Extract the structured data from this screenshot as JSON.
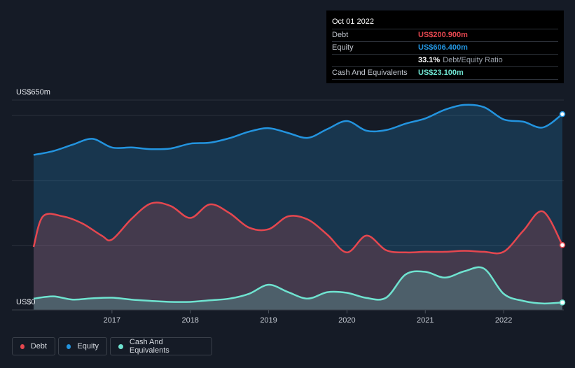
{
  "tooltip": {
    "date": "Oct 01 2022",
    "debt_label": "Debt",
    "debt_value": "US$200.900m",
    "equity_label": "Equity",
    "equity_value": "US$606.400m",
    "ratio_value": "33.1%",
    "ratio_label": "Debt/Equity Ratio",
    "cash_label": "Cash And Equivalents",
    "cash_value": "US$23.100m"
  },
  "legend": {
    "debt": "Debt",
    "equity": "Equity",
    "cash": "Cash And Equivalents"
  },
  "colors": {
    "debt": "#e5474f",
    "equity": "#2394df",
    "cash": "#6fe3d0",
    "background": "#151b26"
  },
  "chart_data": {
    "type": "area",
    "y_top_label": "US$650m",
    "y_bottom_label": "US$0",
    "ylim": [
      0,
      650
    ],
    "xlim": [
      2016.0,
      2022.75
    ],
    "x_tick_labels": [
      "2017",
      "2018",
      "2019",
      "2020",
      "2021",
      "2022"
    ],
    "x_ticks": [
      2017,
      2018,
      2019,
      2020,
      2021,
      2022
    ],
    "grid": true,
    "legend_position": "bottom-left",
    "series": [
      {
        "name": "Equity",
        "x": [
          2016.0,
          2016.25,
          2016.5,
          2016.75,
          2017.0,
          2017.25,
          2017.5,
          2017.75,
          2018.0,
          2018.25,
          2018.5,
          2018.75,
          2019.0,
          2019.25,
          2019.5,
          2019.75,
          2020.0,
          2020.25,
          2020.5,
          2020.75,
          2021.0,
          2021.25,
          2021.5,
          2021.75,
          2022.0,
          2022.25,
          2022.5,
          2022.75
        ],
        "values": [
          480,
          492,
          512,
          530,
          503,
          503,
          498,
          500,
          515,
          518,
          532,
          552,
          563,
          548,
          533,
          560,
          585,
          555,
          557,
          577,
          593,
          620,
          635,
          628,
          590,
          583,
          565,
          606.4
        ]
      },
      {
        "name": "Debt",
        "x": [
          2016.0,
          2016.12,
          2016.37,
          2016.62,
          2016.87,
          2017.0,
          2017.25,
          2017.5,
          2017.75,
          2018.0,
          2018.25,
          2018.5,
          2018.75,
          2019.0,
          2019.25,
          2019.5,
          2019.75,
          2020.0,
          2020.25,
          2020.5,
          2020.75,
          2021.0,
          2021.25,
          2021.5,
          2021.75,
          2022.0,
          2022.25,
          2022.5,
          2022.75
        ],
        "values": [
          195,
          290,
          290,
          268,
          230,
          218,
          282,
          330,
          322,
          285,
          327,
          300,
          255,
          250,
          290,
          280,
          233,
          178,
          230,
          185,
          178,
          180,
          180,
          183,
          180,
          180,
          245,
          305,
          200.9
        ]
      },
      {
        "name": "Cash And Equivalents",
        "x": [
          2016.0,
          2016.25,
          2016.5,
          2016.75,
          2017.0,
          2017.25,
          2017.5,
          2017.75,
          2018.0,
          2018.25,
          2018.5,
          2018.75,
          2019.0,
          2019.25,
          2019.5,
          2019.75,
          2020.0,
          2020.25,
          2020.5,
          2020.75,
          2021.0,
          2021.25,
          2021.5,
          2021.75,
          2022.0,
          2022.25,
          2022.5,
          2022.75
        ],
        "values": [
          35,
          42,
          32,
          36,
          38,
          32,
          28,
          25,
          25,
          30,
          35,
          50,
          78,
          55,
          35,
          55,
          53,
          37,
          38,
          110,
          118,
          100,
          120,
          128,
          50,
          28,
          20,
          23.1
        ]
      }
    ]
  }
}
